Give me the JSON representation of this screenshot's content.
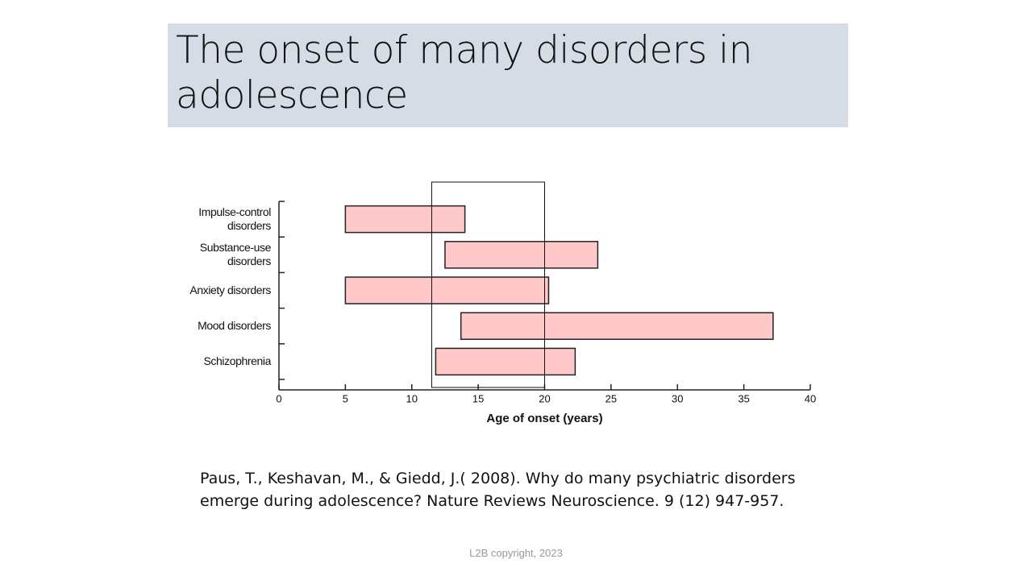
{
  "slide": {
    "title": "The onset of many disorders in adolescence",
    "citation": "Paus, T., Keshavan, M., & Giedd, J.( 2008). Why do many psychiatric disorders emerge during adolescence? Nature Reviews Neuroscience. 9 (12) 947-957.",
    "footer": "L2B copyright, 2023"
  },
  "chart_data": {
    "type": "range-bar",
    "categories": [
      "Impulse-control disorders",
      "Substance-use disorders",
      "Anxiety disorders",
      "Mood disorders",
      "Schizophrenia"
    ],
    "start": [
      5,
      12.5,
      5,
      13.7,
      11.8
    ],
    "end": [
      14,
      24,
      20.3,
      37.2,
      22.3
    ],
    "color": "#ffc9c9",
    "highlight": [
      11.5,
      20
    ],
    "xlabel": "Age of onset (years)",
    "xlim": [
      0,
      40
    ],
    "xticks": [
      0,
      5,
      10,
      15,
      20,
      25,
      30,
      35,
      40
    ]
  }
}
